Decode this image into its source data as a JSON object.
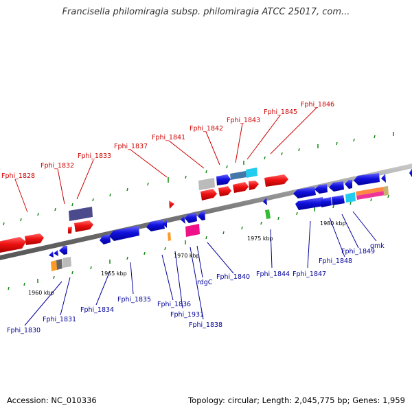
{
  "title": "Francisella philomiragia subsp. philomiragia ATCC 25017, com...",
  "footer": {
    "accession": "Accession: NC_010336",
    "summary": "Topology: circular; Length: 2,045,775 bp; Genes: 1,959"
  },
  "scale_labels": [
    "1960 kbp",
    "1965 kbp",
    "1970 kbp",
    "1975 kbp",
    "1980 kbp"
  ],
  "genes_forward": [
    "Fphi_1828",
    "Fphi_1832",
    "Fphi_1833",
    "Fphi_1837",
    "Fphi_1841",
    "Fphi_1842",
    "Fphi_1843",
    "Fphi_1845",
    "Fphi_1846"
  ],
  "genes_reverse": [
    "Fphi_1830",
    "Fphi_1831",
    "Fphi_1834",
    "Fphi_1835",
    "Fphi_1836",
    "Fphi_1931",
    "Fphi_1838",
    "rdgC",
    "Fphi_1840",
    "Fphi_1844",
    "Fphi_1847",
    "Fphi_1848",
    "Fphi_1849",
    "gmk"
  ],
  "colors": {
    "forward": "#ee1111",
    "reverse": "#1111dd",
    "backbone": "#888888",
    "tick": "#118811",
    "label_forward": "#cc0000",
    "label_reverse": "#000099"
  }
}
